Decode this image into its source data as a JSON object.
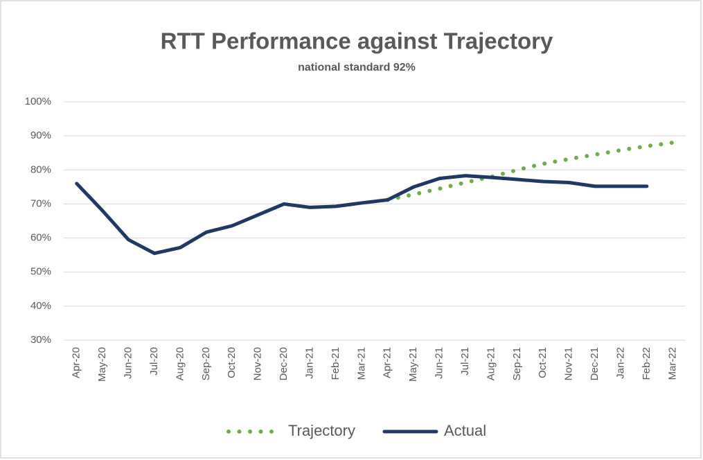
{
  "chart_data": {
    "type": "line",
    "title": "RTT Performance against Trajectory",
    "subtitle": "national standard 92%",
    "categories": [
      "Apr-20",
      "May-20",
      "Jun-20",
      "Jul-20",
      "Aug-20",
      "Sep-20",
      "Oct-20",
      "Nov-20",
      "Dec-20",
      "Jan-21",
      "Feb-21",
      "Mar-21",
      "Apr-21",
      "May-21",
      "Jun-21",
      "Jul-21",
      "Aug-21",
      "Sep-21",
      "Oct-21",
      "Nov-21",
      "Dec-21",
      "Jan-22",
      "Feb-22",
      "Mar-22"
    ],
    "series": [
      {
        "name": "Trajectory",
        "color": "#70ad47",
        "style": "dotted",
        "values": [
          null,
          null,
          null,
          null,
          null,
          null,
          null,
          null,
          null,
          null,
          null,
          null,
          71.2,
          72.8,
          74.5,
          76.3,
          78,
          80,
          81.8,
          83.2,
          84.5,
          85.8,
          87,
          88
        ]
      },
      {
        "name": "Actual",
        "color": "#1f3864",
        "style": "solid",
        "values": [
          76,
          68,
          59.5,
          55.5,
          57.2,
          61.7,
          63.6,
          66.8,
          70,
          69,
          69.3,
          70.3,
          71.2,
          75,
          77.5,
          78.3,
          77.8,
          77.2,
          76.6,
          76.3,
          75.2,
          75.2,
          75.2,
          null
        ]
      }
    ],
    "ylim": [
      30,
      100
    ],
    "yticks": [
      {
        "value": 30,
        "label": "30%"
      },
      {
        "value": 40,
        "label": "40%"
      },
      {
        "value": 50,
        "label": "50%"
      },
      {
        "value": 60,
        "label": "60%"
      },
      {
        "value": 70,
        "label": "70%"
      },
      {
        "value": 80,
        "label": "80%"
      },
      {
        "value": 90,
        "label": "90%"
      },
      {
        "value": 100,
        "label": "100%"
      }
    ],
    "grid": true,
    "legend": "bottom"
  }
}
